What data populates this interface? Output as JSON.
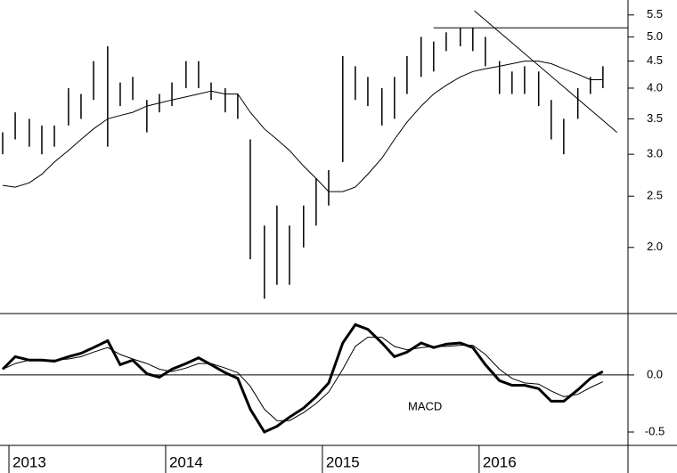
{
  "chart_data": [
    {
      "type": "ohlc",
      "log_scale": true,
      "x": [
        2012.96,
        2013.04,
        2013.13,
        2013.21,
        2013.29,
        2013.38,
        2013.46,
        2013.54,
        2013.63,
        2013.71,
        2013.79,
        2013.88,
        2013.96,
        2014.04,
        2014.13,
        2014.21,
        2014.29,
        2014.38,
        2014.46,
        2014.54,
        2014.63,
        2014.71,
        2014.79,
        2014.88,
        2014.96,
        2015.04,
        2015.13,
        2015.21,
        2015.29,
        2015.38,
        2015.46,
        2015.54,
        2015.63,
        2015.71,
        2015.79,
        2015.88,
        2015.96,
        2016.04,
        2016.13,
        2016.21,
        2016.29,
        2016.38,
        2016.46,
        2016.54,
        2016.63,
        2016.71,
        2016.79
      ],
      "high": [
        3.3,
        3.6,
        3.5,
        3.4,
        3.4,
        4.0,
        3.9,
        4.5,
        4.8,
        4.1,
        4.2,
        3.8,
        3.9,
        4.1,
        4.5,
        4.5,
        4.1,
        4.0,
        3.9,
        3.2,
        2.2,
        2.4,
        2.2,
        2.4,
        2.7,
        2.8,
        4.6,
        4.4,
        4.2,
        4.0,
        4.2,
        4.6,
        5.0,
        4.9,
        5.1,
        5.2,
        5.2,
        5.0,
        4.5,
        4.3,
        4.4,
        4.3,
        3.8,
        3.5,
        4.0,
        4.2,
        4.4
      ],
      "low": [
        3.0,
        3.2,
        3.1,
        3.0,
        3.1,
        3.4,
        3.5,
        3.8,
        3.1,
        3.7,
        3.8,
        3.3,
        3.6,
        3.7,
        4.0,
        4.0,
        3.8,
        3.6,
        3.5,
        1.9,
        1.6,
        1.7,
        1.7,
        2.0,
        2.2,
        2.4,
        2.9,
        3.8,
        3.7,
        3.4,
        3.5,
        3.9,
        4.2,
        4.3,
        4.7,
        4.8,
        4.7,
        4.4,
        3.9,
        3.9,
        3.9,
        3.7,
        3.2,
        3.0,
        3.5,
        3.9,
        4.0
      ],
      "moving_average": [
        2.62,
        2.6,
        2.65,
        2.75,
        2.9,
        3.05,
        3.2,
        3.35,
        3.5,
        3.55,
        3.6,
        3.7,
        3.75,
        3.8,
        3.85,
        3.9,
        3.95,
        3.9,
        3.9,
        3.6,
        3.35,
        3.2,
        3.05,
        2.85,
        2.7,
        2.55,
        2.55,
        2.6,
        2.75,
        2.95,
        3.2,
        3.45,
        3.7,
        3.9,
        4.05,
        4.2,
        4.3,
        4.35,
        4.4,
        4.45,
        4.5,
        4.5,
        4.45,
        4.35,
        4.25,
        4.15,
        4.15
      ],
      "lines": [
        {
          "x": [
            2015.71,
            2016.95
          ],
          "y": [
            5.2,
            5.2
          ]
        },
        {
          "x": [
            2015.97,
            2016.88
          ],
          "y": [
            5.6,
            3.3
          ]
        }
      ],
      "xlim": [
        2012.943,
        2016.95
      ],
      "ylim": [
        1.5,
        5.87
      ],
      "yticks": [
        {
          "value": 2,
          "label": "2.0"
        },
        2.5,
        {
          "value": 3,
          "label": "3.0"
        },
        3.5,
        {
          "value": 4,
          "label": "4.0"
        },
        4.5,
        {
          "value": 5,
          "label": "5.0"
        },
        5.5
      ]
    },
    {
      "type": "macd",
      "annotation": "MACD",
      "x": [
        2012.96,
        2013.04,
        2013.13,
        2013.21,
        2013.29,
        2013.38,
        2013.46,
        2013.54,
        2013.63,
        2013.71,
        2013.79,
        2013.88,
        2013.96,
        2014.04,
        2014.13,
        2014.21,
        2014.29,
        2014.38,
        2014.46,
        2014.54,
        2014.63,
        2014.71,
        2014.79,
        2014.88,
        2014.96,
        2015.04,
        2015.13,
        2015.21,
        2015.29,
        2015.38,
        2015.46,
        2015.54,
        2015.63,
        2015.71,
        2015.79,
        2015.88,
        2015.96,
        2016.04,
        2016.13,
        2016.21,
        2016.29,
        2016.38,
        2016.46,
        2016.54,
        2016.63,
        2016.71,
        2016.79
      ],
      "macd": [
        0.05,
        0.16,
        0.13,
        0.13,
        0.12,
        0.16,
        0.19,
        0.24,
        0.3,
        0.09,
        0.13,
        0.01,
        -0.02,
        0.05,
        0.1,
        0.15,
        0.09,
        0.02,
        -0.03,
        -0.3,
        -0.5,
        -0.45,
        -0.37,
        -0.29,
        -0.19,
        -0.07,
        0.28,
        0.44,
        0.4,
        0.28,
        0.16,
        0.2,
        0.28,
        0.24,
        0.27,
        0.28,
        0.24,
        0.09,
        -0.05,
        -0.09,
        -0.09,
        -0.12,
        -0.23,
        -0.23,
        -0.13,
        -0.03,
        0.03
      ],
      "signal": [
        0.05,
        0.1,
        0.13,
        0.13,
        0.13,
        0.14,
        0.16,
        0.2,
        0.24,
        0.18,
        0.14,
        0.1,
        0.05,
        0.03,
        0.06,
        0.1,
        0.1,
        0.06,
        0.02,
        -0.1,
        -0.3,
        -0.4,
        -0.4,
        -0.33,
        -0.25,
        -0.15,
        0.05,
        0.25,
        0.33,
        0.33,
        0.25,
        0.22,
        0.24,
        0.25,
        0.25,
        0.26,
        0.26,
        0.18,
        0.05,
        -0.03,
        -0.07,
        -0.08,
        -0.14,
        -0.19,
        -0.17,
        -0.11,
        -0.06
      ],
      "hline": 0,
      "xlim": [
        2012.943,
        2016.95
      ],
      "xticks": [
        2013,
        2014,
        2015,
        2016
      ],
      "ylim": [
        -0.617,
        0.53
      ],
      "yticks": [
        {
          "value": -0.5,
          "label": "-0.5"
        },
        {
          "value": 0,
          "label": "0.0"
        }
      ]
    }
  ]
}
